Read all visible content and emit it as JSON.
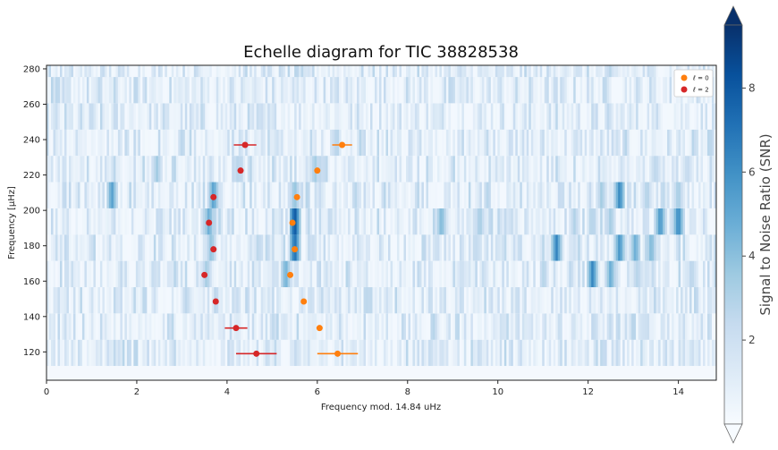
{
  "chart_data": {
    "type": "heatmap",
    "title": "Echelle diagram for TIC 38828538",
    "xlabel": "Frequency mod. 14.84 uHz",
    "ylabel": "Frequency [μHz]",
    "xlim": [
      0,
      14.84
    ],
    "ylim": [
      104,
      282
    ],
    "xticks": [
      0,
      2,
      4,
      6,
      8,
      10,
      12,
      14
    ],
    "yticks": [
      120,
      140,
      160,
      180,
      200,
      220,
      240,
      260,
      280
    ],
    "rows": [
      {
        "y": 119.5,
        "strong": [
          [
            6.45,
            0.8
          ]
        ]
      },
      {
        "y": 134.3,
        "strong": [
          [
            3.6,
            1.0
          ],
          [
            5.9,
            1.2
          ]
        ]
      },
      {
        "y": 149.2,
        "strong": [
          [
            6.2,
            1.2
          ],
          [
            9.6,
            0.9
          ]
        ]
      },
      {
        "y": 164.0,
        "strong": [
          [
            3.55,
            3.5
          ],
          [
            5.3,
            4.8
          ],
          [
            9.2,
            2.2
          ],
          [
            12.1,
            6.5
          ],
          [
            12.5,
            5.0
          ],
          [
            13.1,
            3.0
          ],
          [
            13.3,
            2.0
          ],
          [
            14.3,
            2.8
          ]
        ]
      },
      {
        "y": 178.9,
        "strong": [
          [
            3.65,
            4.0
          ],
          [
            5.5,
            7.5
          ],
          [
            11.3,
            6.5
          ],
          [
            12.7,
            6.0
          ],
          [
            13.05,
            5.0
          ],
          [
            13.4,
            4.5
          ]
        ]
      },
      {
        "y": 193.7,
        "strong": [
          [
            3.6,
            5.0
          ],
          [
            5.5,
            8.5
          ],
          [
            8.75,
            4.5
          ],
          [
            9.6,
            3.5
          ],
          [
            11.7,
            3.0
          ],
          [
            12.1,
            2.8
          ],
          [
            12.5,
            3.5
          ],
          [
            13.6,
            6.0
          ],
          [
            14.0,
            6.5
          ]
        ]
      },
      {
        "y": 208.6,
        "strong": [
          [
            1.45,
            5.5
          ],
          [
            3.7,
            5.5
          ],
          [
            5.5,
            4.0
          ],
          [
            12.3,
            3.5
          ],
          [
            12.7,
            6.5
          ],
          [
            13.3,
            3.0
          ],
          [
            14.0,
            3.5
          ]
        ]
      },
      {
        "y": 223.4,
        "strong": [
          [
            2.45,
            3.5
          ],
          [
            4.25,
            3.0
          ],
          [
            5.95,
            3.5
          ],
          [
            13.5,
            2.8
          ],
          [
            14.2,
            2.6
          ]
        ]
      },
      {
        "y": 238.3,
        "strong": [
          [
            5.1,
            1.8
          ]
        ]
      },
      {
        "y": 253.1,
        "strong": []
      },
      {
        "y": 268.0,
        "strong": [
          [
            9.2,
            1.5
          ]
        ]
      },
      {
        "y": 282.8,
        "strong": [
          [
            5.8,
            1.8
          ],
          [
            11.5,
            1.5
          ]
        ]
      }
    ],
    "series": [
      {
        "name": "ℓ = 0",
        "color": "#ff7f0e",
        "points": [
          {
            "x": 6.45,
            "y": 119.0,
            "xerr": 0.45
          },
          {
            "x": 6.05,
            "y": 133.5,
            "xerr": 0.0
          },
          {
            "x": 5.7,
            "y": 148.5,
            "xerr": 0.0
          },
          {
            "x": 5.4,
            "y": 163.5,
            "xerr": 0.0
          },
          {
            "x": 5.5,
            "y": 178.0,
            "xerr": 0.0
          },
          {
            "x": 5.45,
            "y": 193.0,
            "xerr": 0.0
          },
          {
            "x": 5.55,
            "y": 207.5,
            "xerr": 0.0
          },
          {
            "x": 6.0,
            "y": 222.5,
            "xerr": 0.0
          },
          {
            "x": 6.55,
            "y": 237.0,
            "xerr": 0.22
          }
        ]
      },
      {
        "name": "ℓ = 2",
        "color": "#d62728",
        "points": [
          {
            "x": 4.65,
            "y": 119.0,
            "xerr": 0.45
          },
          {
            "x": 4.2,
            "y": 133.5,
            "xerr": 0.25
          },
          {
            "x": 3.75,
            "y": 148.5,
            "xerr": 0.0
          },
          {
            "x": 3.5,
            "y": 163.5,
            "xerr": 0.0
          },
          {
            "x": 3.7,
            "y": 178.0,
            "xerr": 0.0
          },
          {
            "x": 3.6,
            "y": 193.0,
            "xerr": 0.0
          },
          {
            "x": 3.7,
            "y": 207.5,
            "xerr": 0.0
          },
          {
            "x": 4.3,
            "y": 222.5,
            "xerr": 0.0
          },
          {
            "x": 4.4,
            "y": 237.0,
            "xerr": 0.25
          }
        ]
      }
    ],
    "legend_position": "top-right",
    "colorbar": {
      "label": "Signal to Noise Ratio (SNR)",
      "min": 0,
      "max": 9.5,
      "ticks": [
        2,
        4,
        6,
        8
      ],
      "colormap": "Blues",
      "extend": "both"
    }
  }
}
